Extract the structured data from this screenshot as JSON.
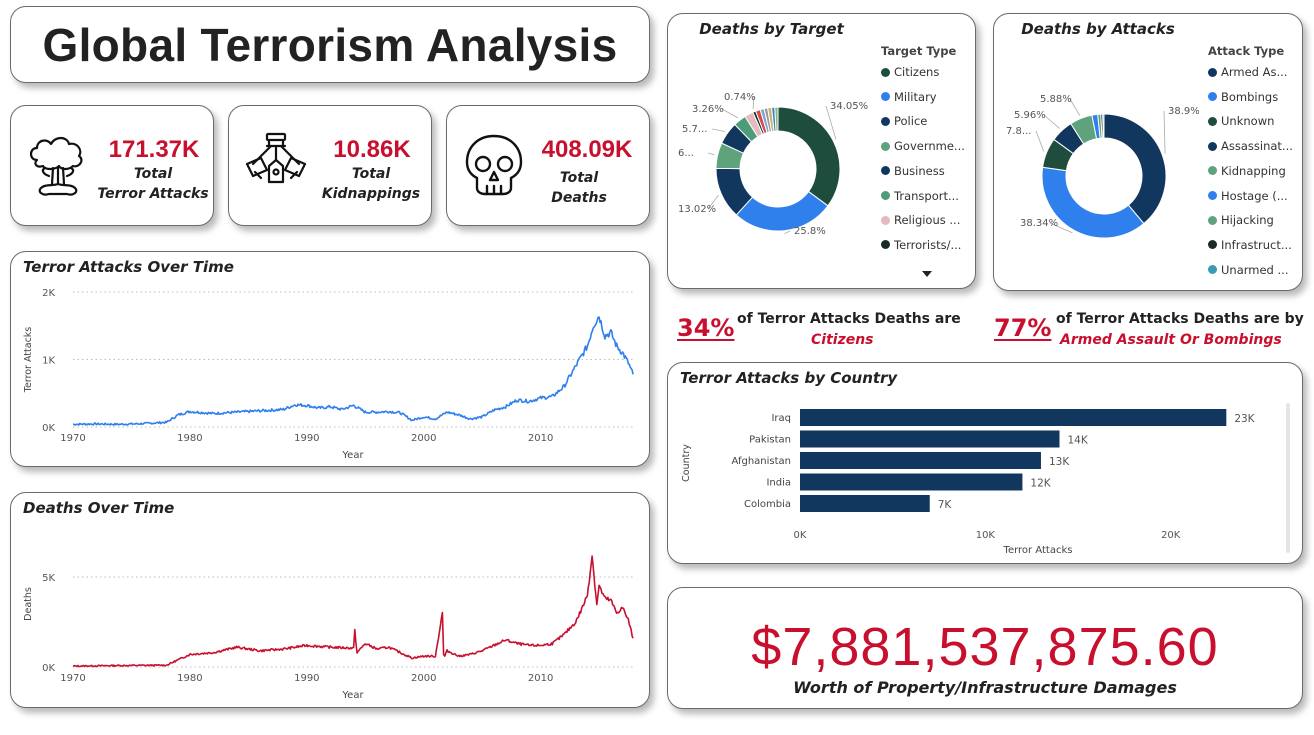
{
  "header": {
    "title": "Global Terrorism Analysis"
  },
  "kpis": [
    {
      "value": "171.37K",
      "label_line1": "Total",
      "label_line2": "Terror Attacks",
      "icon": "explosion-icon"
    },
    {
      "value": "10.86K",
      "label_line1": "Total",
      "label_line2": "Kidnappings",
      "icon": "handcuffs-icon"
    },
    {
      "value": "408.09K",
      "label_line1": "Total",
      "label_line2": "Deaths",
      "icon": "skull-icon"
    }
  ],
  "insights": [
    {
      "pct": "34%",
      "line1": "of Terror Attacks Deaths are",
      "line2": "Citizens"
    },
    {
      "pct": "77%",
      "line1": "of Terror Attacks Deaths are by",
      "line2": "Armed Assault Or Bombings"
    }
  ],
  "damages": {
    "value": "$7,881,537,875.60",
    "label": "Worth of Property/Infrastructure Damages"
  },
  "colors": {
    "accent_red": "#c8102e",
    "line_blue": "#2f80ed",
    "bar_navy": "#12375e"
  },
  "chart_data": [
    {
      "id": "attacks_over_time",
      "type": "line",
      "title": "Terror Attacks Over Time",
      "xlabel": "Year",
      "ylabel": "Terror Attacks",
      "x_ticks": [
        1970,
        1980,
        1990,
        2000,
        2010
      ],
      "y_ticks": [
        "0K",
        "1K",
        "2K"
      ],
      "xlim": [
        1970,
        2017.9
      ],
      "ylim": [
        0,
        2000
      ],
      "grid": true,
      "color": "#2f80ed",
      "series": [
        {
          "x": [
            1970,
            1972,
            1974,
            1976,
            1977,
            1978,
            1979,
            1980,
            1982,
            1984,
            1986,
            1988,
            1989,
            1990,
            1991,
            1992,
            1993,
            1994,
            1995,
            1996,
            1997,
            1998,
            1999,
            2000,
            2001,
            2002,
            2003,
            2004,
            2005,
            2006,
            2007,
            2008,
            2009,
            2010,
            2011,
            2012,
            2013,
            2013.5,
            2014,
            2014.5,
            2015,
            2015.5,
            2016,
            2016.5,
            2017,
            2017.5,
            2017.9
          ],
          "y": [
            40,
            45,
            40,
            50,
            60,
            70,
            180,
            230,
            200,
            220,
            240,
            260,
            330,
            320,
            280,
            300,
            260,
            320,
            220,
            220,
            230,
            210,
            100,
            150,
            120,
            220,
            180,
            120,
            150,
            250,
            300,
            400,
            380,
            430,
            450,
            600,
            900,
            1050,
            1200,
            1500,
            1650,
            1350,
            1400,
            1200,
            1100,
            950,
            780
          ]
        }
      ]
    },
    {
      "id": "deaths_over_time",
      "type": "line",
      "title": "Deaths Over Time",
      "xlabel": "Year",
      "ylabel": "Deaths",
      "x_ticks": [
        1970,
        1980,
        1990,
        2000,
        2010
      ],
      "y_ticks": [
        "0K",
        "5K"
      ],
      "xlim": [
        1970,
        2017.9
      ],
      "ylim": [
        0,
        7000
      ],
      "grid": true,
      "color": "#c8102e",
      "series": [
        {
          "x": [
            1970,
            1974,
            1978,
            1979,
            1980,
            1982,
            1984,
            1986,
            1988,
            1990,
            1992,
            1994,
            1994.1,
            1994.3,
            1995,
            1996,
            1997,
            1998,
            1999,
            2000,
            2001,
            2001.6,
            2001.7,
            2001.8,
            2002,
            2003,
            2004,
            2005,
            2006,
            2007,
            2008,
            2009,
            2010,
            2011,
            2012,
            2013,
            2013.5,
            2014,
            2014.4,
            2014.8,
            2015,
            2015.5,
            2016,
            2016.5,
            2017,
            2017.5,
            2017.9
          ],
          "y": [
            50,
            80,
            100,
            400,
            700,
            800,
            1100,
            900,
            1000,
            1200,
            1100,
            1050,
            2000,
            800,
            1300,
            1000,
            1100,
            800,
            500,
            600,
            600,
            3000,
            700,
            600,
            900,
            600,
            700,
            900,
            1200,
            1500,
            1300,
            1200,
            1200,
            1300,
            1800,
            2500,
            3200,
            4000,
            6200,
            3500,
            4500,
            3800,
            3700,
            3000,
            3300,
            2600,
            1600
          ]
        }
      ]
    },
    {
      "id": "deaths_by_target",
      "type": "pie",
      "title": "Deaths by Target",
      "legend_title": "Target Type",
      "legend_placement": "right",
      "labels": [
        "Citizens",
        "Military",
        "Police",
        "Governme...",
        "Business",
        "Transport...",
        "Religious ...",
        "Terrorists/..."
      ],
      "values": [
        34.05,
        25.8,
        13.02,
        6.5,
        5.7,
        3.26,
        2.2,
        0.74
      ],
      "colors": [
        "#1e4d3d",
        "#2f80ed",
        "#12375e",
        "#5fa37c",
        "#12375e",
        "#4d9c79",
        "#e4b9bf",
        "#1a2b2a"
      ],
      "data_labels": [
        "34.05%",
        "25.8%",
        "13.02%",
        "6...",
        "5.7...",
        "3.26%",
        "",
        "0.74%"
      ],
      "extra_slices": [
        {
          "value": 1.2,
          "color": "#d94b4b"
        },
        {
          "value": 1.0,
          "color": "#7ea7d8"
        },
        {
          "value": 0.9,
          "color": "#9b9b9b"
        },
        {
          "value": 1.0,
          "color": "#c9b37e"
        },
        {
          "value": 0.8,
          "color": "#3a86b8"
        },
        {
          "value": 0.8,
          "color": "#86b386"
        }
      ]
    },
    {
      "id": "deaths_by_attacks",
      "type": "pie",
      "title": "Deaths by Attacks",
      "legend_title": "Attack Type",
      "legend_placement": "right",
      "labels": [
        "Armed As...",
        "Bombings",
        "Unknown",
        "Assassinat...",
        "Kidnapping",
        "Hostage (...",
        "Hijacking",
        "Infrastruct...",
        "Unarmed ..."
      ],
      "values": [
        38.9,
        38.34,
        7.8,
        5.96,
        5.88,
        1.5,
        0.8,
        0.5,
        0.32
      ],
      "colors": [
        "#12375e",
        "#2f80ed",
        "#1e4d3d",
        "#12375e",
        "#5fa37c",
        "#2f80ed",
        "#5fa37c",
        "#1a2b2a",
        "#3a9bb5"
      ],
      "data_labels": [
        "38.9%",
        "38.34%",
        "7.8...",
        "5.96%",
        "5.88%",
        "",
        "",
        "",
        ""
      ]
    },
    {
      "id": "attacks_by_country",
      "type": "bar",
      "orientation": "horizontal",
      "title": "Terror Attacks by Country",
      "xlabel": "Terror Attacks",
      "ylabel": "Country",
      "categories": [
        "Iraq",
        "Pakistan",
        "Afghanistan",
        "India",
        "Colombia"
      ],
      "values": [
        23000,
        14000,
        13000,
        12000,
        7000
      ],
      "data_labels": [
        "23K",
        "14K",
        "13K",
        "12K",
        "7K"
      ],
      "x_ticks": [
        "0K",
        "10K",
        "20K"
      ],
      "xlim": [
        0,
        25000
      ],
      "color": "#12375e"
    }
  ]
}
